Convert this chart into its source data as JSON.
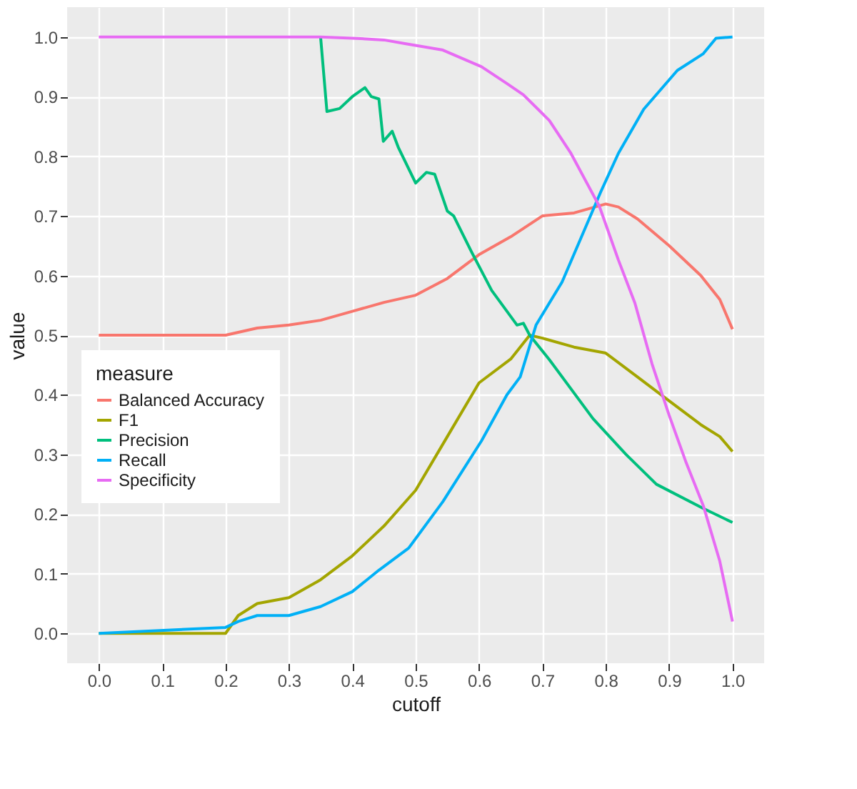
{
  "chart_data": {
    "type": "line",
    "xlabel": "cutoff",
    "ylabel": "value",
    "legend_title": "measure",
    "legend": "bottom left",
    "grid": true,
    "line_style": "solid",
    "marker": "none",
    "xlim": [
      -0.05,
      1.05
    ],
    "ylim": [
      -0.05,
      1.05
    ],
    "xticks": [
      {
        "value": 0,
        "label": "0.0"
      },
      0.1,
      0.2,
      0.3,
      0.4,
      0.5,
      0.6,
      0.7,
      0.8,
      0.9,
      {
        "value": 1,
        "label": "1.0"
      }
    ],
    "yticks": [
      {
        "value": 0,
        "label": "0.0"
      },
      0.1,
      0.2,
      0.3,
      0.4,
      0.5,
      0.6,
      0.7,
      0.8,
      0.9,
      {
        "value": 1,
        "label": "1.0"
      }
    ],
    "series": [
      {
        "name": "Balanced Accuracy",
        "color": "#f8766d",
        "x": [
          0,
          0.2,
          0.25,
          0.3,
          0.35,
          0.4,
          0.45,
          0.5,
          0.55,
          0.6,
          0.65,
          0.7,
          0.75,
          0.8,
          0.82,
          0.85,
          0.9,
          0.95,
          0.98,
          1.0
        ],
        "values": [
          0.5,
          0.5,
          0.512,
          0.517,
          0.525,
          0.54,
          0.555,
          0.567,
          0.595,
          0.635,
          0.665,
          0.7,
          0.705,
          0.72,
          0.715,
          0.695,
          0.65,
          0.6,
          0.56,
          0.51
        ]
      },
      {
        "name": "F1",
        "color": "#a3a500",
        "x": [
          0,
          0.2,
          0.22,
          0.25,
          0.3,
          0.35,
          0.4,
          0.45,
          0.5,
          0.55,
          0.6,
          0.65,
          0.68,
          0.7,
          0.75,
          0.8,
          0.85,
          0.9,
          0.95,
          0.98,
          1.0
        ],
        "values": [
          0,
          0,
          0.03,
          0.05,
          0.06,
          0.09,
          0.13,
          0.18,
          0.24,
          0.33,
          0.42,
          0.46,
          0.5,
          0.495,
          0.48,
          0.47,
          0.43,
          0.39,
          0.35,
          0.33,
          0.305
        ]
      },
      {
        "name": "Precision",
        "color": "#00bf7d",
        "x": [
          0.35,
          0.36,
          0.38,
          0.4,
          0.42,
          0.43,
          0.442,
          0.449,
          0.463,
          0.473,
          0.5,
          0.517,
          0.53,
          0.55,
          0.56,
          0.588,
          0.62,
          0.66,
          0.67,
          0.68,
          0.711,
          0.78,
          0.832,
          0.88,
          0.953,
          1.0
        ],
        "values": [
          1.0,
          0.875,
          0.88,
          0.9,
          0.915,
          0.9,
          0.896,
          0.825,
          0.842,
          0.814,
          0.755,
          0.773,
          0.77,
          0.708,
          0.7,
          0.64,
          0.575,
          0.517,
          0.52,
          0.5,
          0.459,
          0.36,
          0.3,
          0.25,
          0.21,
          0.186
        ]
      },
      {
        "name": "Recall",
        "color": "#00b0f6",
        "x": [
          0,
          0.2,
          0.22,
          0.25,
          0.3,
          0.35,
          0.4,
          0.442,
          0.489,
          0.543,
          0.604,
          0.644,
          0.665,
          0.69,
          0.731,
          0.792,
          0.82,
          0.86,
          0.913,
          0.954,
          0.974,
          1.0
        ],
        "values": [
          0,
          0.01,
          0.02,
          0.03,
          0.03,
          0.045,
          0.07,
          0.106,
          0.143,
          0.221,
          0.323,
          0.4,
          0.43,
          0.517,
          0.589,
          0.74,
          0.805,
          0.879,
          0.944,
          0.972,
          0.998,
          1.0
        ]
      },
      {
        "name": "Specificity",
        "color": "#e76bf3",
        "x": [
          0,
          0.35,
          0.4,
          0.45,
          0.483,
          0.543,
          0.604,
          0.644,
          0.67,
          0.711,
          0.745,
          0.79,
          0.82,
          0.846,
          0.873,
          0.9,
          0.927,
          0.954,
          0.98,
          1.0
        ],
        "values": [
          1.0,
          1.0,
          0.998,
          0.995,
          0.989,
          0.978,
          0.95,
          0.922,
          0.903,
          0.86,
          0.805,
          0.716,
          0.626,
          0.554,
          0.452,
          0.366,
          0.286,
          0.214,
          0.121,
          0.02
        ]
      }
    ]
  }
}
